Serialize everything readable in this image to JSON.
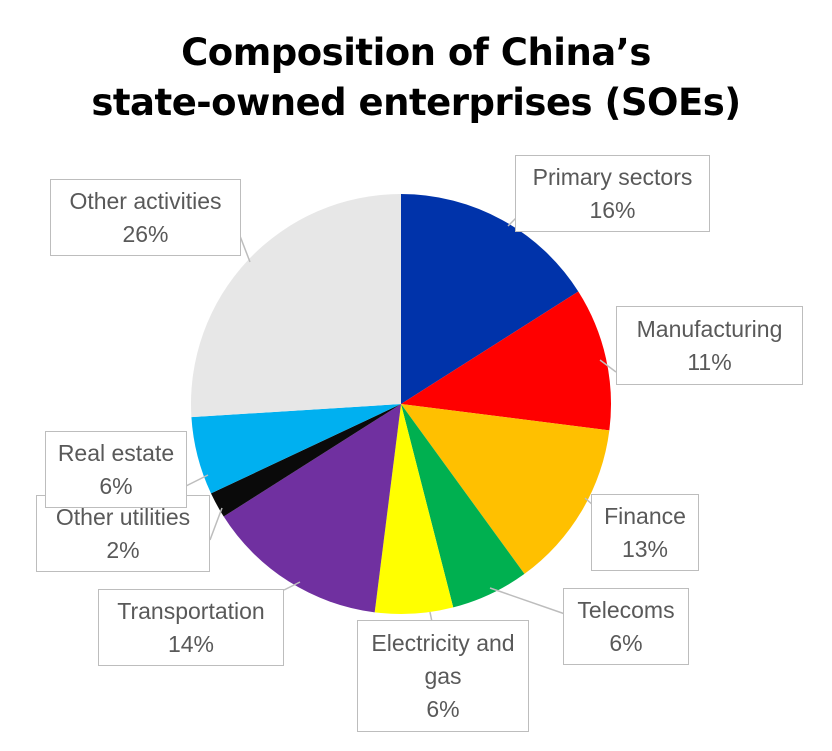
{
  "title_lines": [
    "Composition of China’s",
    "state-owned enterprises (SOEs)"
  ],
  "chart_data": {
    "type": "pie",
    "title": "Composition of China’s state-owned enterprises (SOEs)",
    "start_angle_deg": 0,
    "direction": "clockwise",
    "slices": [
      {
        "name": "Primary sectors",
        "value": 16,
        "label": "16%",
        "color": "#0033AA"
      },
      {
        "name": "Manufacturing",
        "value": 11,
        "label": "11%",
        "color": "#FF0000"
      },
      {
        "name": "Finance",
        "value": 13,
        "label": "13%",
        "color": "#FFC000"
      },
      {
        "name": "Telecoms",
        "value": 6,
        "label": "6%",
        "color": "#00B050"
      },
      {
        "name": "Electricity and gas",
        "value": 6,
        "label": "6%",
        "color": "#FFFF00"
      },
      {
        "name": "Transportation",
        "value": 14,
        "label": "14%",
        "color": "#7030A0"
      },
      {
        "name": "Other utilities",
        "value": 2,
        "label": "2%",
        "color": "#0A0A0A"
      },
      {
        "name": "Real estate",
        "value": 6,
        "label": "6%",
        "color": "#00B0F0"
      },
      {
        "name": "Other activities",
        "value": 26,
        "label": "26%",
        "color": "#E7E7E7"
      }
    ]
  },
  "labels": [
    {
      "lines": [
        "Primary sectors"
      ],
      "value": "16%"
    },
    {
      "lines": [
        "Manufacturing"
      ],
      "value": "11%"
    },
    {
      "lines": [
        "Finance"
      ],
      "value": "13%"
    },
    {
      "lines": [
        "Telecoms"
      ],
      "value": "6%"
    },
    {
      "lines": [
        "Electricity and",
        "gas"
      ],
      "value": "6%"
    },
    {
      "lines": [
        "Transportation"
      ],
      "value": "14%"
    },
    {
      "lines": [
        "Other utilities"
      ],
      "value": "2%"
    },
    {
      "lines": [
        "Real estate"
      ],
      "value": "6%"
    },
    {
      "lines": [
        "Other activities"
      ],
      "value": "26%"
    }
  ]
}
